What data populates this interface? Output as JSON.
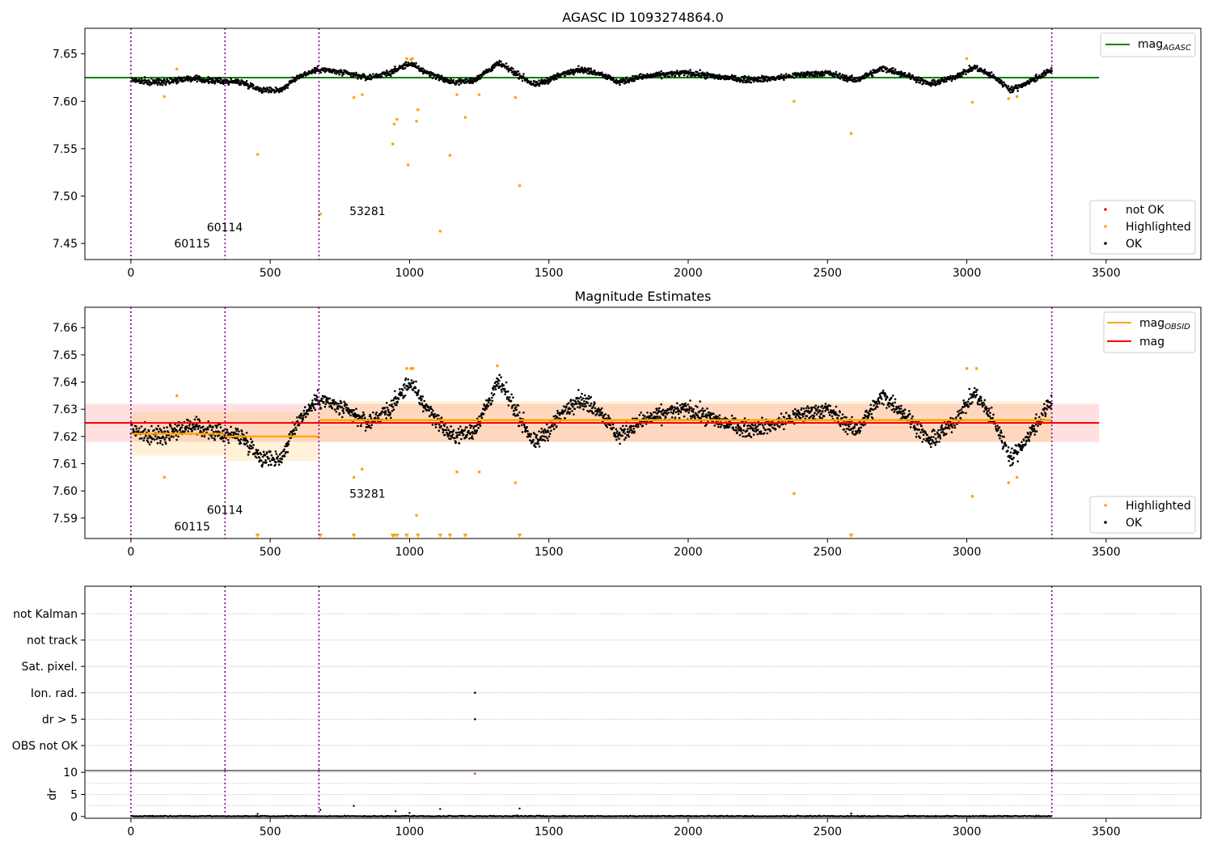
{
  "chart_data": [
    {
      "type": "scatter",
      "title": "AGASC ID 1093274864.0",
      "xlim": [
        -165,
        3840
      ],
      "ylim": [
        7.433,
        7.677
      ],
      "xticks": [
        "0",
        "500",
        "1000",
        "1500",
        "2000",
        "2500",
        "3000",
        "3500"
      ],
      "yticks": [
        "7.45",
        "7.50",
        "7.55",
        "7.60",
        "7.65"
      ],
      "obsid_boundaries": [
        0,
        338,
        675,
        3305
      ],
      "obsid_labels": [
        "60115",
        "60114",
        "53281"
      ],
      "mag_agasc": 7.625,
      "legend_lines": [
        {
          "name": "mag",
          "sub": "AGASC",
          "color": "#008000"
        }
      ],
      "legend_points": [
        {
          "name": "not OK",
          "color": "#ff0000"
        },
        {
          "name": "Highlighted",
          "color": "#ffa500"
        },
        {
          "name": "OK",
          "color": "#000000"
        }
      ],
      "series": [
        {
          "name": "OK",
          "color": "#000000",
          "trend": [
            [
              0,
              7.623
            ],
            [
              60,
              7.62
            ],
            [
              120,
              7.621
            ],
            [
              200,
              7.624
            ],
            [
              280,
              7.622
            ],
            [
              338,
              7.621
            ],
            [
              400,
              7.62
            ],
            [
              470,
              7.612
            ],
            [
              540,
              7.612
            ],
            [
              600,
              7.626
            ],
            [
              675,
              7.634
            ],
            [
              760,
              7.63
            ],
            [
              850,
              7.625
            ],
            [
              930,
              7.63
            ],
            [
              1000,
              7.64
            ],
            [
              1050,
              7.632
            ],
            [
              1150,
              7.62
            ],
            [
              1230,
              7.622
            ],
            [
              1320,
              7.64
            ],
            [
              1380,
              7.63
            ],
            [
              1450,
              7.617
            ],
            [
              1520,
              7.625
            ],
            [
              1600,
              7.634
            ],
            [
              1680,
              7.63
            ],
            [
              1750,
              7.62
            ],
            [
              1820,
              7.625
            ],
            [
              1900,
              7.628
            ],
            [
              2000,
              7.63
            ],
            [
              2100,
              7.626
            ],
            [
              2200,
              7.623
            ],
            [
              2300,
              7.624
            ],
            [
              2400,
              7.628
            ],
            [
              2500,
              7.63
            ],
            [
              2600,
              7.622
            ],
            [
              2700,
              7.635
            ],
            [
              2780,
              7.628
            ],
            [
              2870,
              7.618
            ],
            [
              2950,
              7.625
            ],
            [
              3030,
              7.636
            ],
            [
              3100,
              7.625
            ],
            [
              3160,
              7.612
            ],
            [
              3220,
              7.62
            ],
            [
              3305,
              7.633
            ]
          ]
        },
        {
          "name": "Highlighted",
          "color": "#ffa500",
          "points": [
            [
              120,
              7.605
            ],
            [
              165,
              7.634
            ],
            [
              455,
              7.544
            ],
            [
              680,
              7.481
            ],
            [
              800,
              7.604
            ],
            [
              830,
              7.607
            ],
            [
              940,
              7.555
            ],
            [
              945,
              7.576
            ],
            [
              955,
              7.581
            ],
            [
              990,
              7.645
            ],
            [
              995,
              7.533
            ],
            [
              1005,
              7.644
            ],
            [
              1010,
              7.645
            ],
            [
              1025,
              7.579
            ],
            [
              1030,
              7.591
            ],
            [
              1110,
              7.463
            ],
            [
              1145,
              7.543
            ],
            [
              1170,
              7.607
            ],
            [
              1200,
              7.583
            ],
            [
              1250,
              7.607
            ],
            [
              1380,
              7.604
            ],
            [
              1395,
              7.511
            ],
            [
              2380,
              7.6
            ],
            [
              2585,
              7.566
            ],
            [
              3000,
              7.645
            ],
            [
              3020,
              7.599
            ],
            [
              3150,
              7.603
            ],
            [
              3180,
              7.605
            ]
          ]
        }
      ]
    },
    {
      "type": "scatter",
      "title": "Magnitude Estimates",
      "xlim": [
        -165,
        3840
      ],
      "ylim": [
        7.5825,
        7.6675
      ],
      "xticks": [
        "0",
        "500",
        "1000",
        "1500",
        "2000",
        "2500",
        "3000",
        "3500"
      ],
      "yticks": [
        "7.59",
        "7.60",
        "7.61",
        "7.62",
        "7.63",
        "7.64",
        "7.65",
        "7.66"
      ],
      "obsid_boundaries": [
        0,
        338,
        675,
        3305
      ],
      "obsid_labels": [
        "60115",
        "60114",
        "53281"
      ],
      "mag": 7.625,
      "mag_band": [
        7.618,
        7.632
      ],
      "mag_obsid": [
        {
          "x": [
            0,
            338
          ],
          "y": 7.621,
          "band": [
            7.613,
            7.629
          ]
        },
        {
          "x": [
            338,
            675
          ],
          "y": 7.62,
          "band": [
            7.611,
            7.629
          ]
        },
        {
          "x": [
            675,
            3305
          ],
          "y": 7.626,
          "band": [
            7.618,
            7.633
          ]
        }
      ],
      "legend_lines": [
        {
          "name": "mag",
          "sub": "OBSID",
          "color": "#ffa500"
        },
        {
          "name": "mag",
          "sub": "",
          "color": "#ff0000"
        }
      ],
      "legend_points": [
        {
          "name": "Highlighted",
          "color": "#ffa500"
        },
        {
          "name": "OK",
          "color": "#000000"
        }
      ],
      "highlighted": [
        [
          120,
          7.605
        ],
        [
          165,
          7.635
        ],
        [
          800,
          7.605
        ],
        [
          830,
          7.608
        ],
        [
          990,
          7.645
        ],
        [
          1005,
          7.645
        ],
        [
          1012,
          7.645
        ],
        [
          1025,
          7.591
        ],
        [
          1170,
          7.607
        ],
        [
          1250,
          7.607
        ],
        [
          1380,
          7.603
        ],
        [
          2380,
          7.599
        ],
        [
          3000,
          7.645
        ],
        [
          3020,
          7.598
        ],
        [
          3150,
          7.603
        ],
        [
          3180,
          7.605
        ],
        [
          1315,
          7.646
        ],
        [
          3035,
          7.645
        ]
      ],
      "below_range": [
        455,
        680,
        800,
        940,
        945,
        955,
        990,
        1030,
        1110,
        1145,
        1200,
        1395,
        2585
      ]
    },
    {
      "type": "scatter",
      "xlim": [
        -165,
        3840
      ],
      "yticks": [
        "not Kalman",
        "not track",
        "Sat. pixel.",
        "Ion. rad.",
        "dr > 5",
        "OBS not OK"
      ],
      "obsid_boundaries": [
        0,
        338,
        675,
        3305
      ],
      "flags": [
        {
          "x": 1235,
          "flag": "Ion. rad."
        },
        {
          "x": 1235,
          "flag": "dr > 5"
        }
      ]
    },
    {
      "type": "scatter",
      "xlim": [
        -165,
        3840
      ],
      "ylim": [
        -0.4,
        10.4
      ],
      "ylabel": "dr",
      "xticks": [
        "0",
        "500",
        "1000",
        "1500",
        "2000",
        "2500",
        "3000",
        "3500"
      ],
      "yticks": [
        "0",
        "5",
        "10"
      ],
      "obsid_boundaries": [
        0,
        338,
        675,
        3305
      ],
      "outliers": [
        [
          455,
          0.6
        ],
        [
          680,
          1.5
        ],
        [
          800,
          2.4
        ],
        [
          950,
          1.2
        ],
        [
          1000,
          0.8
        ],
        [
          1110,
          1.7
        ],
        [
          1395,
          1.8
        ],
        [
          2585,
          0.7
        ],
        [
          1235,
          9.7
        ]
      ]
    }
  ]
}
